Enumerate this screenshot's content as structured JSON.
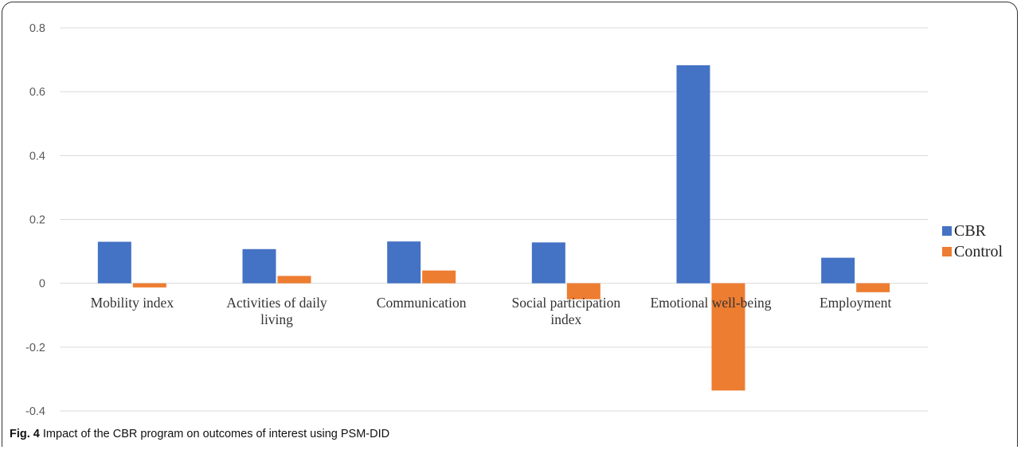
{
  "chart_data": {
    "type": "bar",
    "categories": [
      [
        "Mobility index"
      ],
      [
        "Activities of daily",
        "living"
      ],
      [
        "Communication"
      ],
      [
        "Social participation",
        "index"
      ],
      [
        "Emotional well-being"
      ],
      [
        "Employment"
      ]
    ],
    "series": [
      {
        "name": "CBR",
        "color": "#4472C4",
        "values": [
          0.13,
          0.107,
          0.131,
          0.128,
          0.683,
          0.08
        ]
      },
      {
        "name": "Control",
        "color": "#ED7D31",
        "values": [
          -0.013,
          0.023,
          0.04,
          -0.05,
          -0.336,
          -0.028
        ]
      }
    ],
    "ylim": [
      -0.4,
      0.8
    ],
    "yticks": [
      "0.8",
      "0.6",
      "0.4",
      "0.2",
      "0",
      "-0.2",
      "-0.4"
    ],
    "ytick_values": [
      0.8,
      0.6,
      0.4,
      0.2,
      0,
      -0.2,
      -0.4
    ],
    "grid": true,
    "legend_position": "right"
  },
  "caption": {
    "label": "Fig. 4",
    "text": " Impact of the CBR program on outcomes of interest using PSM-DID"
  },
  "colors": {
    "gridline": "#d9d9d9",
    "axis_text": "#595959"
  }
}
